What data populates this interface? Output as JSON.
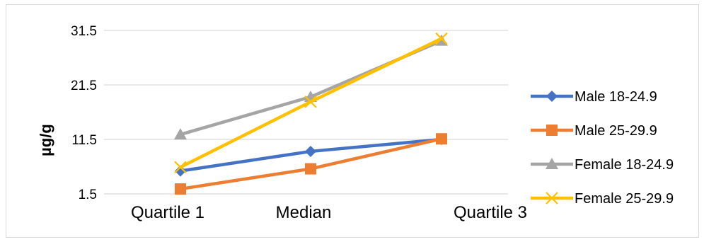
{
  "chart_data": {
    "type": "line",
    "title": "",
    "xlabel": "",
    "ylabel": "µg/g",
    "categories": [
      "Quartile 1",
      "Median",
      "Quartile 3"
    ],
    "y_ticks": [
      "31.5",
      "21.5",
      "11.5",
      "1.5"
    ],
    "ylim": [
      1.5,
      31.5
    ],
    "grid": true,
    "legend_position": "right",
    "series": [
      {
        "name": "Male 18-24.9",
        "values": [
          5.7,
          9.3,
          11.5
        ],
        "color": "#4472C4",
        "marker": "diamond"
      },
      {
        "name": "Male 25-29.9",
        "values": [
          2.4,
          6.1,
          11.6
        ],
        "color": "#ED7D31",
        "marker": "square"
      },
      {
        "name": "Female 18-24.9",
        "values": [
          12.4,
          19.3,
          29.6
        ],
        "color": "#A5A5A5",
        "marker": "triangle"
      },
      {
        "name": "Female 25-29.9",
        "values": [
          6.4,
          18.4,
          30.0
        ],
        "color": "#FFC000",
        "marker": "x"
      }
    ]
  }
}
